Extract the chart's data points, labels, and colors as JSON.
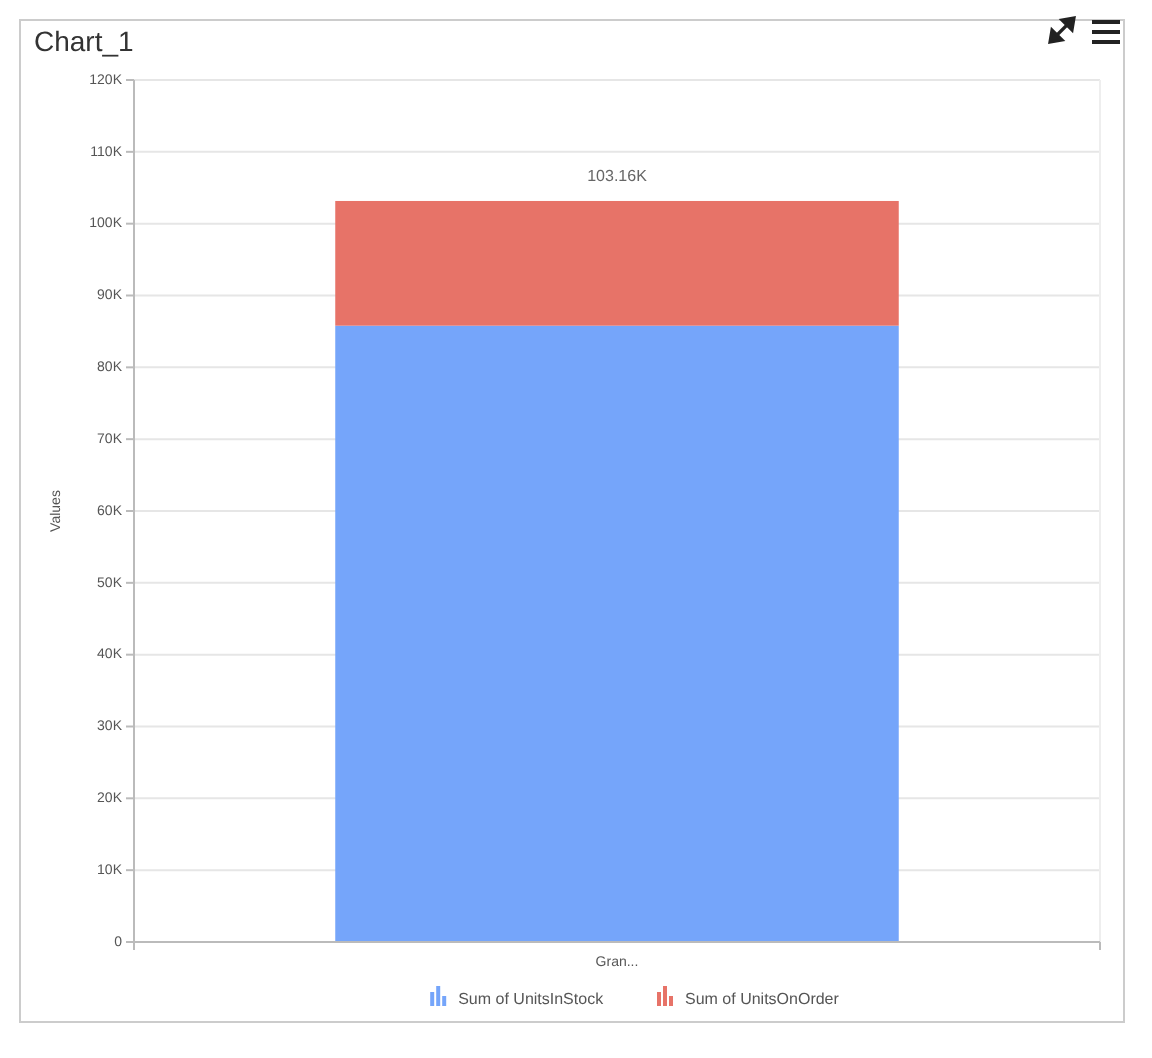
{
  "chart_data": {
    "type": "bar",
    "title": "Chart_1",
    "ylabel": "Values",
    "categories": [
      "Gran..."
    ],
    "stacked": true,
    "series": [
      {
        "name": "Sum of UnitsInStock",
        "color": "#75a5fa",
        "values": [
          85800
        ]
      },
      {
        "name": "Sum of UnitsOnOrder",
        "color": "#e77368",
        "values": [
          17360
        ]
      }
    ],
    "totals": [
      "103.16K"
    ],
    "ylim": [
      0,
      120000
    ],
    "yticks": [
      0,
      {
        "value": 10000,
        "label": "10K"
      },
      {
        "value": 20000,
        "label": "20K"
      },
      {
        "value": 30000,
        "label": "30K"
      },
      {
        "value": 40000,
        "label": "40K"
      },
      {
        "value": 50000,
        "label": "50K"
      },
      {
        "value": 60000,
        "label": "60K"
      },
      {
        "value": 70000,
        "label": "70K"
      },
      {
        "value": 80000,
        "label": "80K"
      },
      {
        "value": 90000,
        "label": "90K"
      },
      {
        "value": 100000,
        "label": "100K"
      },
      {
        "value": 110000,
        "label": "110K"
      },
      {
        "value": 120000,
        "label": "120K"
      }
    ],
    "grid": "y",
    "legend": "bottom"
  }
}
